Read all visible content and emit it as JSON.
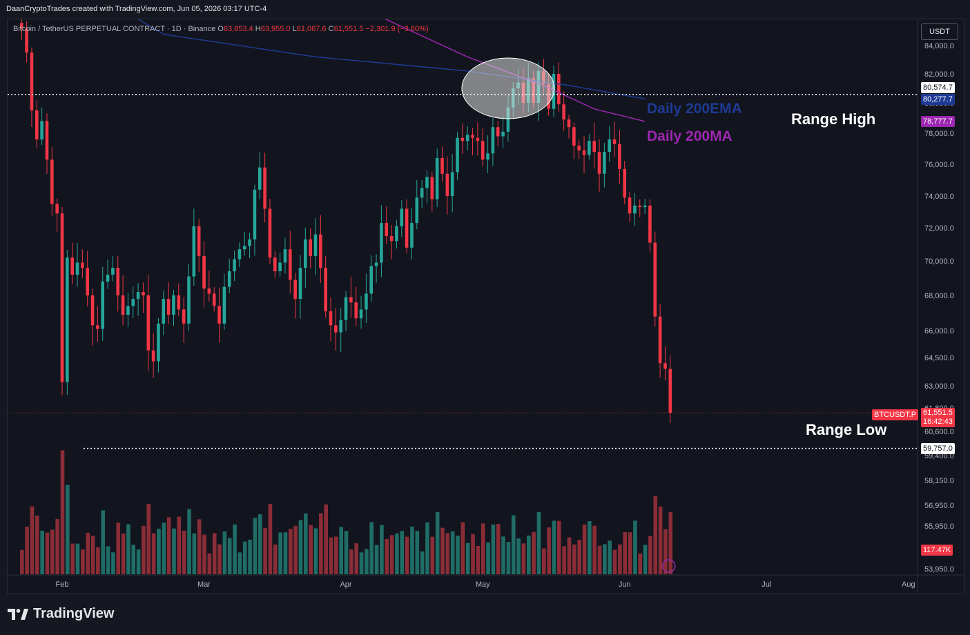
{
  "header": {
    "credit": "DaanCryptoTrades created with TradingView.com, Jun 05, 2026 03:17 UTC-4"
  },
  "symbol": {
    "name": "Bitcoin / TetherUS PERPETUAL CONTRACT · 1D · Binance",
    "o_label": "O",
    "o": "63,853.4",
    "h_label": "H",
    "h": "63,955.0",
    "l_label": "L",
    "l": "61,067.6",
    "c_label": "C",
    "c": "61,551.5",
    "change": "−2,301.9 (−3.60%)"
  },
  "currency": "USDT",
  "annotations": {
    "ema": "Daily 200EMA",
    "ma": "Daily 200MA",
    "range_high": "Range High",
    "range_low": "Range Low"
  },
  "price_tags": {
    "range_high": "80,574.7",
    "ema": "80,277.7",
    "ma": "78,777.7",
    "last_symbol": "BTCUSDT.P",
    "last": "61,551.5",
    "countdown": "16:42:43",
    "range_low": "59,757.0",
    "volume": "117.47K"
  },
  "colors": {
    "up": "#26a69a",
    "down": "#f23645",
    "ema": "#1e3a94",
    "ma": "#9c27b0",
    "background": "#12151e"
  },
  "brand": "TradingView",
  "chart_data": {
    "type": "candlestick",
    "title": "Bitcoin / TetherUS PERPETUAL CONTRACT · 1D · Binance",
    "y_ticks": [
      "84,000.0",
      "82,000.0",
      "80,000.0",
      "78,000.0",
      "76,000.0",
      "74,000.0",
      "72,000.0",
      "70,000.0",
      "68,000.0",
      "66,000.0",
      "64,500.0",
      "63,000.0",
      "61,800.0",
      "60,600.0",
      "59,400.0",
      "58,150.0",
      "56,950.0",
      "55,950.0",
      "53,950.0"
    ],
    "y_tick_values": [
      84000,
      82000,
      80000,
      78000,
      76000,
      74000,
      72000,
      70000,
      68000,
      66000,
      64500,
      63000,
      61800,
      60600,
      59400,
      58150,
      56950,
      55950,
      53950
    ],
    "x_ticks": [
      "Feb",
      "Mar",
      "Apr",
      "May",
      "Jun",
      "Jul",
      "Aug"
    ],
    "x_tick_days": [
      0,
      28,
      56,
      83,
      111,
      139,
      167
    ],
    "start_day_offset": -8,
    "candles_close": [
      85200,
      83500,
      79500,
      77600,
      78800,
      76300,
      73500,
      72900,
      63200,
      70200,
      69200,
      69900,
      69600,
      68000,
      66300,
      66100,
      68800,
      69200,
      69600,
      68000,
      66900,
      67400,
      67800,
      68200,
      68000,
      64900,
      64300,
      66400,
      67800,
      66900,
      68000,
      67200,
      66400,
      69100,
      72100,
      70300,
      68400,
      68100,
      67400,
      66400,
      68500,
      69400,
      70100,
      70700,
      70900,
      71300,
      74400,
      75800,
      73200,
      70200,
      69400,
      69900,
      70700,
      68900,
      67800,
      69600,
      71300,
      70300,
      71600,
      69600,
      67100,
      66300,
      65900,
      66600,
      67900,
      67600,
      66700,
      67200,
      68100,
      69700,
      69900,
      72300,
      71500,
      71200,
      72100,
      73200,
      70800,
      72300,
      73900,
      74500,
      75200,
      73800,
      76400,
      75400,
      74000,
      75500,
      77700,
      77500,
      77900,
      77700,
      77500,
      76300,
      76700,
      78400,
      77800,
      78100,
      79700,
      81000,
      81400,
      80000,
      81700,
      80000,
      82200,
      81300,
      79600,
      82000,
      79900,
      78900,
      78400,
      77200,
      76900,
      76600,
      77500,
      76800,
      75400,
      76800,
      77600,
      77300,
      75700,
      73900,
      72900,
      73400,
      73300,
      73400,
      71100,
      66800,
      64200,
      63900,
      61551
    ],
    "volume_scale_label": "117.47K"
  }
}
